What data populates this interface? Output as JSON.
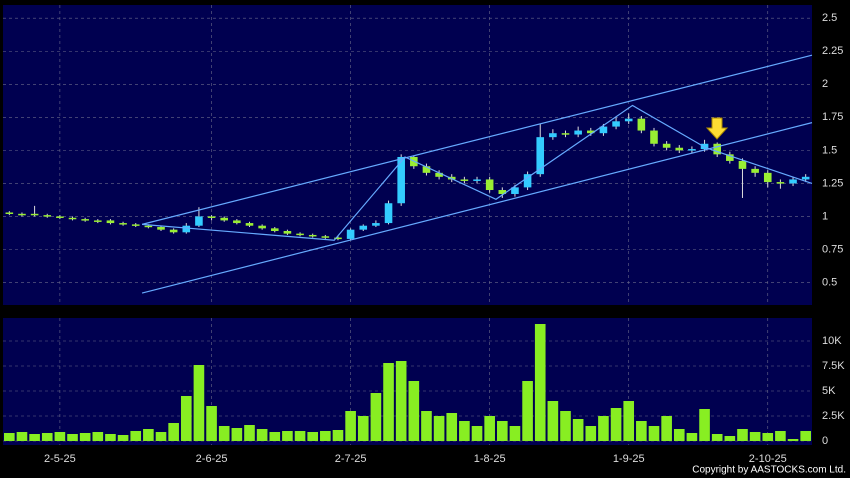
{
  "chart_data": {
    "type": "candlestick",
    "categories": [
      null,
      null,
      null,
      null,
      "2-5-25",
      null,
      null,
      null,
      null,
      null,
      null,
      null,
      null,
      null,
      null,
      null,
      "2-6-25",
      null,
      null,
      null,
      null,
      null,
      null,
      null,
      null,
      null,
      null,
      "2-7-25",
      null,
      null,
      null,
      null,
      null,
      null,
      null,
      null,
      null,
      null,
      "1-8-25",
      null,
      null,
      null,
      null,
      null,
      null,
      null,
      null,
      null,
      null,
      "1-9-25",
      null,
      null,
      null,
      null,
      null,
      null,
      null,
      null,
      null,
      null,
      "2-10-25",
      null,
      null,
      null
    ],
    "open": [
      1.03,
      1.02,
      1.02,
      1.01,
      1.0,
      0.99,
      0.98,
      0.97,
      0.97,
      0.95,
      0.94,
      0.93,
      0.92,
      0.9,
      0.88,
      0.93,
      1.0,
      0.99,
      0.97,
      0.95,
      0.93,
      0.91,
      0.89,
      0.87,
      0.86,
      0.85,
      0.84,
      0.83,
      0.9,
      0.93,
      0.95,
      1.1,
      1.45,
      1.38,
      1.33,
      1.3,
      1.28,
      1.27,
      1.28,
      1.2,
      1.17,
      1.22,
      1.32,
      1.6,
      1.63,
      1.62,
      1.65,
      1.63,
      1.68,
      1.72,
      1.74,
      1.65,
      1.55,
      1.52,
      1.5,
      1.51,
      1.55,
      1.47,
      1.42,
      1.36,
      1.33,
      1.26,
      1.25,
      1.28
    ],
    "high": [
      1.04,
      1.03,
      1.08,
      1.02,
      1.01,
      1.0,
      0.99,
      0.98,
      0.98,
      0.96,
      0.95,
      0.94,
      0.93,
      0.91,
      0.95,
      1.07,
      1.01,
      1.0,
      0.98,
      0.96,
      0.94,
      0.92,
      0.9,
      0.88,
      0.87,
      0.86,
      0.85,
      0.91,
      0.94,
      0.97,
      1.12,
      1.47,
      1.46,
      1.4,
      1.35,
      1.32,
      1.3,
      1.3,
      1.3,
      1.22,
      1.24,
      1.34,
      1.7,
      1.66,
      1.65,
      1.68,
      1.67,
      1.7,
      1.75,
      1.78,
      1.76,
      1.67,
      1.57,
      1.54,
      1.53,
      1.58,
      1.56,
      1.49,
      1.44,
      1.38,
      1.35,
      1.28,
      1.3,
      1.32
    ],
    "low": [
      1.01,
      1.0,
      1.0,
      0.99,
      0.98,
      0.97,
      0.96,
      0.95,
      0.94,
      0.93,
      0.92,
      0.91,
      0.89,
      0.87,
      0.87,
      0.92,
      0.97,
      0.96,
      0.94,
      0.92,
      0.9,
      0.88,
      0.86,
      0.85,
      0.84,
      0.83,
      0.82,
      0.82,
      0.89,
      0.92,
      0.94,
      1.08,
      1.36,
      1.31,
      1.28,
      1.26,
      1.25,
      1.25,
      1.18,
      1.14,
      1.15,
      1.2,
      1.3,
      1.58,
      1.6,
      1.6,
      1.61,
      1.61,
      1.66,
      1.7,
      1.63,
      1.53,
      1.5,
      1.48,
      1.48,
      1.49,
      1.45,
      1.4,
      1.14,
      1.3,
      1.22,
      1.21,
      1.23,
      1.26
    ],
    "close": [
      1.02,
      1.02,
      1.01,
      1.0,
      0.99,
      0.98,
      0.97,
      0.97,
      0.95,
      0.94,
      0.93,
      0.92,
      0.9,
      0.88,
      0.93,
      1.0,
      0.99,
      0.97,
      0.95,
      0.93,
      0.91,
      0.89,
      0.87,
      0.86,
      0.85,
      0.84,
      0.83,
      0.9,
      0.93,
      0.95,
      1.1,
      1.45,
      1.38,
      1.33,
      1.3,
      1.28,
      1.27,
      1.28,
      1.2,
      1.17,
      1.22,
      1.32,
      1.6,
      1.63,
      1.62,
      1.65,
      1.63,
      1.68,
      1.72,
      1.74,
      1.65,
      1.55,
      1.52,
      1.5,
      1.51,
      1.55,
      1.47,
      1.42,
      1.36,
      1.33,
      1.26,
      1.25,
      1.28,
      1.3
    ],
    "up_color": "#33ccff",
    "down_color": "#99ee33",
    "ylim": [
      0.33,
      2.6
    ],
    "yticks": [
      0.5,
      0.75,
      1,
      1.25,
      1.5,
      1.75,
      2,
      2.25,
      2.5
    ],
    "grid": true,
    "trendlines": [
      {
        "x": [
          10.5,
          63.5
        ],
        "y": [
          0.94,
          2.22
        ]
      },
      {
        "x": [
          10.5,
          63.5
        ],
        "y": [
          0.42,
          1.71
        ]
      },
      {
        "x": [
          10.5,
          25.7,
          31.3,
          38.5,
          49.3,
          55.1,
          63.5
        ],
        "y": [
          0.94,
          0.82,
          1.45,
          1.13,
          1.84,
          1.52,
          1.25
        ]
      }
    ],
    "trendline_color": "#66aaff",
    "volume": {
      "color": "#88ee22",
      "values": [
        800,
        900,
        700,
        800,
        900,
        700,
        800,
        900,
        700,
        600,
        1000,
        1200,
        900,
        1800,
        4500,
        7600,
        3500,
        1500,
        1300,
        1600,
        1200,
        900,
        1000,
        1000,
        900,
        1000,
        1100,
        3000,
        2500,
        4800,
        7800,
        8000,
        6000,
        3000,
        2500,
        2800,
        2000,
        1500,
        2500,
        2000,
        1500,
        6000,
        11700,
        4000,
        3000,
        2200,
        1500,
        2500,
        3300,
        4000,
        2000,
        1500,
        2500,
        1200,
        800,
        3200,
        700,
        500,
        1200,
        900,
        800,
        1000,
        200,
        1000
      ],
      "ylim": [
        -400,
        12300
      ],
      "yticks": [
        0,
        {
          "value": 2500,
          "label": "2.5K"
        },
        {
          "value": 5000,
          "label": "5K"
        },
        {
          "value": 7500,
          "label": "7.5K"
        },
        {
          "value": 10000,
          "label": "10K"
        }
      ]
    }
  },
  "footer": "Copyright by AASTOCKS.com Ltd."
}
